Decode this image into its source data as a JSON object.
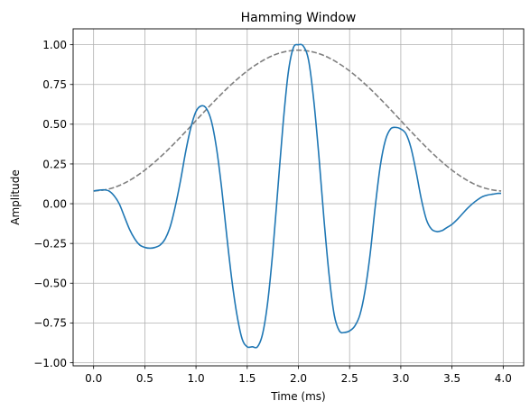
{
  "chart_data": {
    "type": "line",
    "title": "Hamming Window",
    "xlabel": "Time (ms)",
    "ylabel": "Amplitude",
    "xlim": [
      -0.2,
      4.2
    ],
    "ylim": [
      -1.02,
      1.1
    ],
    "x_ticks": [
      0.0,
      0.5,
      1.0,
      1.5,
      2.0,
      2.5,
      3.0,
      3.5,
      4.0
    ],
    "x_tick_labels": [
      "0.0",
      "0.5",
      "1.0",
      "1.5",
      "2.0",
      "2.5",
      "3.0",
      "3.5",
      "4.0"
    ],
    "y_ticks": [
      -1.0,
      -0.75,
      -0.5,
      -0.25,
      0.0,
      0.25,
      0.5,
      0.75,
      1.0
    ],
    "y_tick_labels": [
      "−1.00",
      "−0.75",
      "−0.50",
      "−0.25",
      "0.00",
      "0.25",
      "0.50",
      "0.75",
      "1.00"
    ],
    "grid": true,
    "legend": "none",
    "series": [
      {
        "color": "#1f77b4",
        "style": "solid",
        "x": [
          0.0,
          0.05,
          0.1,
          0.15,
          0.2,
          0.25,
          0.3,
          0.35,
          0.4,
          0.45,
          0.5,
          0.55,
          0.6,
          0.65,
          0.7,
          0.75,
          0.8,
          0.85,
          0.9,
          0.95,
          1.0,
          1.05,
          1.1,
          1.15,
          1.2,
          1.25,
          1.3,
          1.35,
          1.4,
          1.45,
          1.5,
          1.55,
          1.6,
          1.65,
          1.7,
          1.75,
          1.8,
          1.85,
          1.9,
          1.95,
          2.0,
          2.05,
          2.1,
          2.15,
          2.2,
          2.25,
          2.3,
          2.35,
          2.4,
          2.45,
          2.5,
          2.55,
          2.6,
          2.65,
          2.7,
          2.75,
          2.8,
          2.85,
          2.9,
          2.95,
          3.0,
          3.05,
          3.1,
          3.15,
          3.2,
          3.25,
          3.3,
          3.35,
          3.4,
          3.45,
          3.5,
          3.55,
          3.6,
          3.65,
          3.7,
          3.75,
          3.8,
          3.85,
          3.9,
          3.95,
          3.98
        ],
        "y": [
          0.08,
          0.085,
          0.087,
          0.08,
          0.05,
          0.0,
          -0.08,
          -0.16,
          -0.22,
          -0.26,
          -0.275,
          -0.28,
          -0.275,
          -0.26,
          -0.22,
          -0.14,
          -0.01,
          0.15,
          0.33,
          0.48,
          0.58,
          0.615,
          0.6,
          0.52,
          0.35,
          0.1,
          -0.2,
          -0.48,
          -0.7,
          -0.85,
          -0.9,
          -0.9,
          -0.9,
          -0.82,
          -0.62,
          -0.3,
          0.1,
          0.5,
          0.82,
          0.98,
          1.0,
          0.99,
          0.9,
          0.65,
          0.3,
          -0.1,
          -0.45,
          -0.7,
          -0.8,
          -0.81,
          -0.8,
          -0.77,
          -0.7,
          -0.55,
          -0.32,
          -0.02,
          0.24,
          0.4,
          0.47,
          0.48,
          0.47,
          0.44,
          0.35,
          0.2,
          0.03,
          -0.1,
          -0.16,
          -0.175,
          -0.17,
          -0.15,
          -0.13,
          -0.1,
          -0.065,
          -0.03,
          0.0,
          0.025,
          0.045,
          0.055,
          0.06,
          0.065,
          0.065
        ]
      },
      {
        "color": "#7f7f7f",
        "style": "dashed",
        "x": [
          0.0,
          0.1,
          0.2,
          0.3,
          0.4,
          0.5,
          0.6,
          0.7,
          0.8,
          0.9,
          1.0,
          1.1,
          1.2,
          1.3,
          1.4,
          1.5,
          1.6,
          1.7,
          1.8,
          1.9,
          2.0,
          2.1,
          2.2,
          2.3,
          2.4,
          2.5,
          2.6,
          2.7,
          2.8,
          2.9,
          3.0,
          3.1,
          3.2,
          3.3,
          3.4,
          3.5,
          3.6,
          3.7,
          3.8,
          3.9,
          3.98
        ],
        "y": [
          0.08,
          0.086,
          0.102,
          0.129,
          0.166,
          0.211,
          0.264,
          0.323,
          0.387,
          0.454,
          0.523,
          0.592,
          0.659,
          0.723,
          0.782,
          0.835,
          0.88,
          0.917,
          0.944,
          0.96,
          0.966,
          0.96,
          0.944,
          0.917,
          0.88,
          0.835,
          0.782,
          0.723,
          0.659,
          0.592,
          0.523,
          0.454,
          0.387,
          0.323,
          0.264,
          0.211,
          0.166,
          0.129,
          0.102,
          0.086,
          0.08
        ]
      }
    ]
  }
}
